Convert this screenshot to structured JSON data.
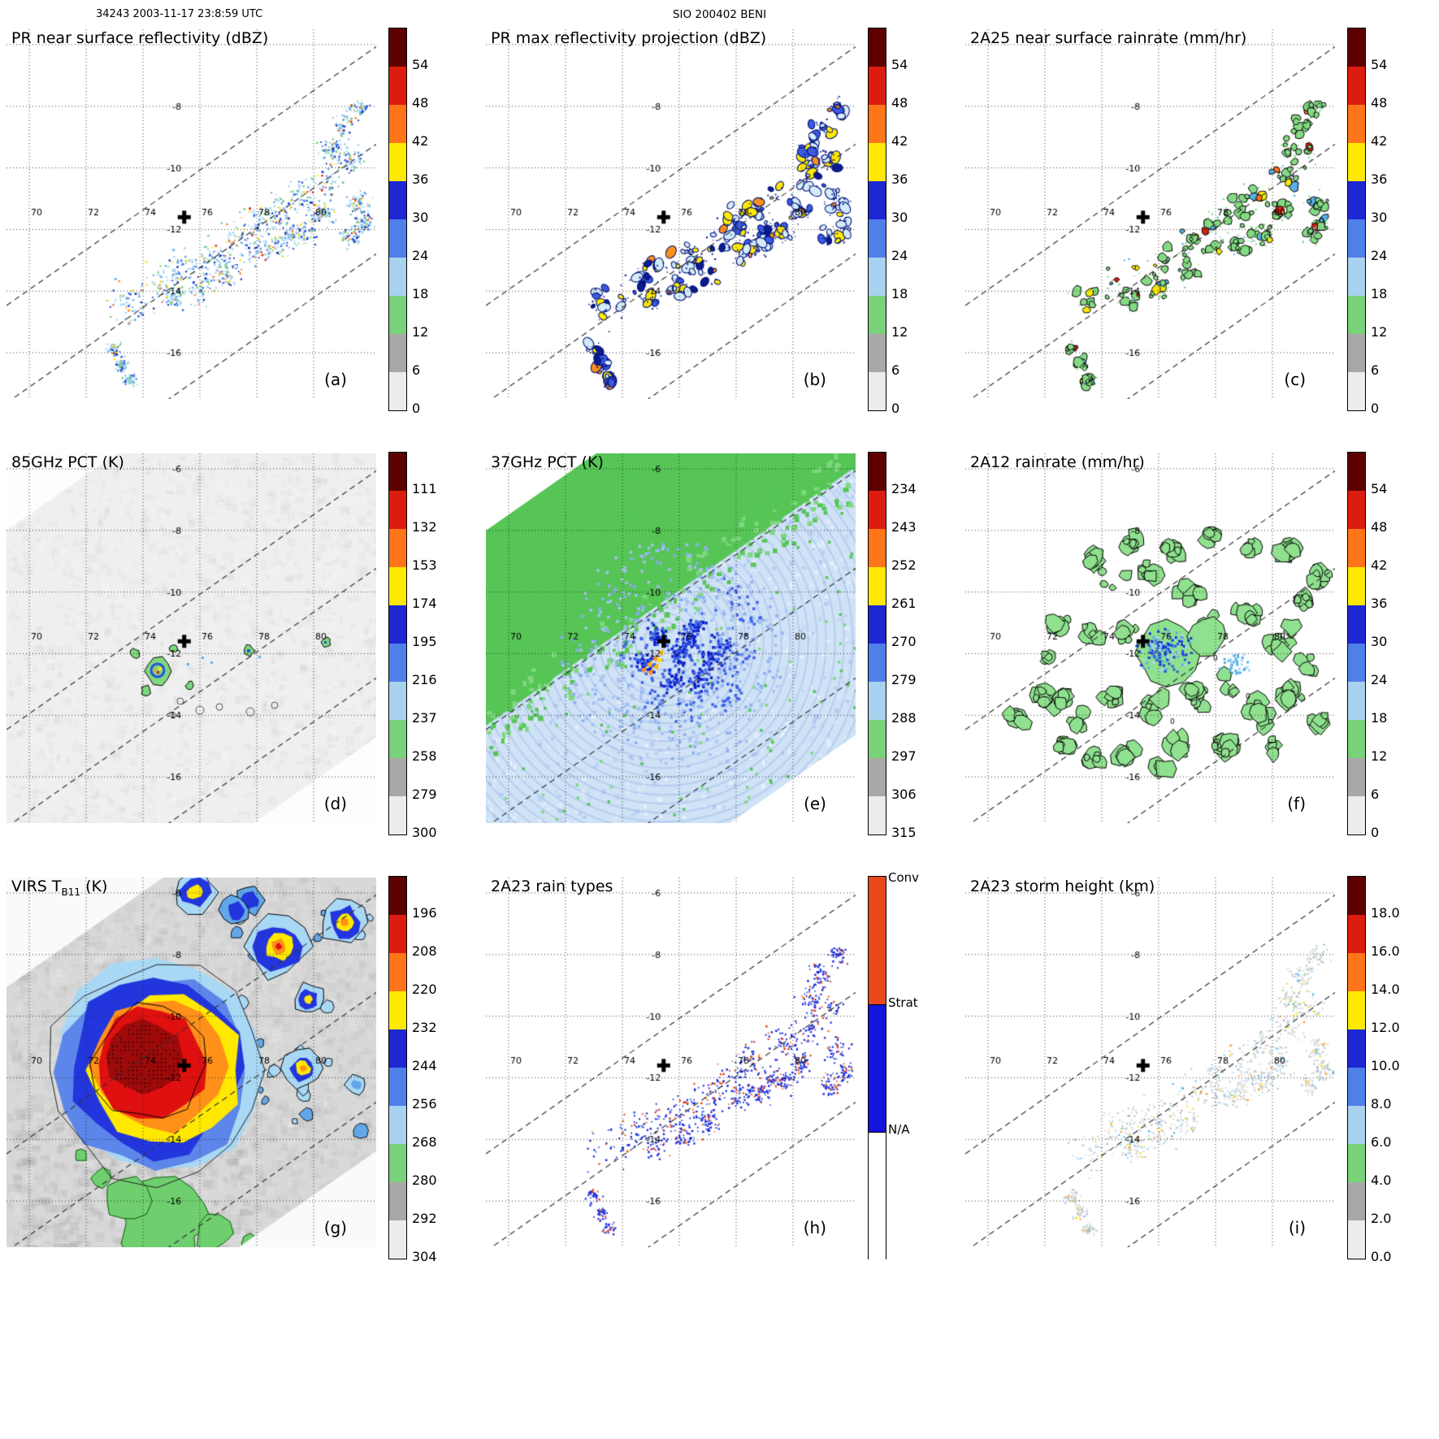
{
  "header": {
    "left": "34243 2003-11-17 23:8:59 UTC",
    "center": "SIO 200402 BENI"
  },
  "map_common": {
    "lon_ticks": [
      70,
      72,
      74,
      76,
      78,
      80
    ],
    "lat_ticks": [
      -6,
      -8,
      -10,
      -12,
      -14,
      -16
    ],
    "lon_range": [
      69.2,
      82.2
    ],
    "lat_range": [
      -17.5,
      -5.5
    ],
    "storm_center_marker": {
      "lon": 75.45,
      "lat": -11.6
    }
  },
  "colormap": [
    "#5e0000",
    "#dd1c10",
    "#ff7519",
    "#ffe900",
    "#1e28d2",
    "#4f7fe8",
    "#a8d2f0",
    "#79d279",
    "#a8a8a8",
    "#ececec"
  ],
  "rain_type_bar": {
    "labels": [
      "Conv",
      "Strat",
      "N/A"
    ],
    "colors": [
      "#e8481c",
      "#1414dc",
      "#ffffff"
    ],
    "fractions": [
      0.3333,
      0.3333,
      0.3334
    ]
  },
  "panels": [
    {
      "id": "a",
      "letter": "(a)",
      "title": "PR near surface reflectivity (dBZ)",
      "bar": "scale",
      "ticks": [
        "54",
        "48",
        "42",
        "36",
        "30",
        "24",
        "18",
        "12",
        "6",
        "0"
      ]
    },
    {
      "id": "b",
      "letter": "(b)",
      "title": "PR max reflectivity projection (dBZ)",
      "bar": "scale",
      "ticks": [
        "54",
        "48",
        "42",
        "36",
        "30",
        "24",
        "18",
        "12",
        "6",
        "0"
      ]
    },
    {
      "id": "c",
      "letter": "(c)",
      "title": "2A25 near surface rainrate (mm/hr)",
      "bar": "scale",
      "ticks": [
        "54",
        "48",
        "42",
        "36",
        "30",
        "24",
        "18",
        "12",
        "6",
        "0"
      ]
    },
    {
      "id": "d",
      "letter": "(d)",
      "title": "85GHz PCT (K)",
      "bar": "scale",
      "ticks": [
        "111",
        "132",
        "153",
        "174",
        "195",
        "216",
        "237",
        "258",
        "279",
        "300"
      ]
    },
    {
      "id": "e",
      "letter": "(e)",
      "title": "37GHz PCT (K)",
      "bar": "scale",
      "ticks": [
        "234",
        "243",
        "252",
        "261",
        "270",
        "279",
        "288",
        "297",
        "306",
        "315"
      ]
    },
    {
      "id": "f",
      "letter": "(f)",
      "title": "2A12 rainrate (mm/hr)",
      "bar": "scale",
      "ticks": [
        "54",
        "48",
        "42",
        "36",
        "30",
        "24",
        "18",
        "12",
        "6",
        "0"
      ]
    },
    {
      "id": "g",
      "letter": "(g)",
      "title_pre": "VIRS T",
      "title_sub": "B11",
      "title_post": " (K)",
      "bar": "scale",
      "ticks": [
        "196",
        "208",
        "220",
        "232",
        "244",
        "256",
        "268",
        "280",
        "292",
        "304"
      ]
    },
    {
      "id": "h",
      "letter": "(h)",
      "title": "2A23 rain types",
      "bar": "raintypes",
      "ticks": []
    },
    {
      "id": "i",
      "letter": "(i)",
      "title": "2A23 storm height (km)",
      "bar": "scale",
      "ticks": [
        "18.0",
        "16.0",
        "14.0",
        "12.0",
        "10.0",
        "8.0",
        "6.0",
        "4.0",
        "2.0",
        "0.0"
      ]
    }
  ],
  "chart_data": [
    {
      "id": "a",
      "type": "heatmap",
      "title": "PR near surface reflectivity (dBZ)",
      "units": "dBZ",
      "colorbar_ticks": [
        54,
        48,
        42,
        36,
        30,
        24,
        18,
        12,
        6,
        0
      ],
      "lon_range": [
        69.2,
        82.2
      ],
      "lat_range": [
        -17.5,
        -5.5
      ],
      "marker": {
        "lon": 75.45,
        "lat": -11.6
      },
      "pattern": "scattered 18-40 dBZ echoes in a NE-SW band inside the PR swath, arc of echoes near east edge, short echo streak to the southwest"
    },
    {
      "id": "b",
      "type": "heatmap",
      "title": "PR max reflectivity projection (dBZ)",
      "units": "dBZ",
      "colorbar_ticks": [
        54,
        48,
        42,
        36,
        30,
        24,
        18,
        12,
        6,
        0
      ],
      "lon_range": [
        69.2,
        82.2
      ],
      "lat_range": [
        -17.5,
        -5.5
      ],
      "marker": {
        "lon": 75.45,
        "lat": -11.6
      },
      "pattern": "same echo band as (a) shown as navy-outlined cells with cyan/yellow/orange interiors up to ~48 dBZ"
    },
    {
      "id": "c",
      "type": "heatmap",
      "title": "2A25 near surface rainrate (mm/hr)",
      "units": "mm/hr",
      "colorbar_ticks": [
        54,
        48,
        42,
        36,
        30,
        24,
        18,
        12,
        6,
        0
      ],
      "lon_range": [
        69.2,
        82.2
      ],
      "lat_range": [
        -17.5,
        -5.5
      ],
      "marker": {
        "lon": 75.45,
        "lat": -11.6
      },
      "pattern": "black-outlined light-green rain cells (mostly < 18 mm/hr) along the same band as (a)"
    },
    {
      "id": "d",
      "type": "heatmap",
      "title": "85GHz PCT (K)",
      "units": "K",
      "colorbar_ticks": [
        111,
        132,
        153,
        174,
        195,
        216,
        237,
        258,
        279,
        300
      ],
      "lon_range": [
        69.2,
        82.2
      ],
      "lat_range": [
        -17.5,
        -5.5
      ],
      "marker": {
        "lon": 75.45,
        "lat": -11.6
      },
      "pattern": "mostly warm (~280-300 K, near-white field); compact cold ice-scattering cluster (<195 K with small <132 K core) just west of the storm center plus a few small cold cells east of it"
    },
    {
      "id": "e",
      "type": "heatmap",
      "title": "37GHz PCT (K)",
      "units": "K",
      "colorbar_ticks": [
        234,
        243,
        252,
        261,
        270,
        279,
        288,
        297,
        306,
        315
      ],
      "lon_range": [
        69.2,
        82.2
      ],
      "lat_range": [
        -17.5,
        -5.5
      ],
      "marker": {
        "lon": 75.45,
        "lat": -11.6
      },
      "pattern": "pale-blue ocean field (~279 K), green warm region (~288 K) over the northeast, dark-blue cold cluster (~261-270 K) around the center with orange arrow marker at storm center"
    },
    {
      "id": "f",
      "type": "heatmap",
      "title": "2A12 rainrate (mm/hr)",
      "units": "mm/hr",
      "colorbar_ticks": [
        54,
        48,
        42,
        36,
        30,
        24,
        18,
        12,
        6,
        0
      ],
      "lon_range": [
        69.2,
        82.2
      ],
      "lat_range": [
        -17.5,
        -5.5
      ],
      "marker": {
        "lon": 75.45,
        "lat": -11.6
      },
      "pattern": "widespread black-outlined green rain patches (<12 mm/hr) in a spiral pattern across the wide TMI swath with light-blue cores near the center; small 0 contour labels"
    },
    {
      "id": "g",
      "type": "heatmap",
      "title": "VIRS T_B11 (K)",
      "units": "K",
      "colorbar_ticks": [
        196,
        208,
        220,
        232,
        244,
        256,
        268,
        280,
        292,
        304
      ],
      "lon_range": [
        69.2,
        82.2
      ],
      "lat_range": [
        -17.5,
        -5.5
      ],
      "marker": {
        "lon": 75.45,
        "lat": -11.6
      },
      "pattern": "large very cold cloud shield (<208 K, stippled dark-red core) centered near 74.5E 11.5S ringed by orange/yellow/blue; secondary cold cells to the northeast; warm gray ocean background with green land/warm patches to the south"
    },
    {
      "id": "h",
      "type": "heatmap",
      "title": "2A23 rain types",
      "categories": [
        "Conv",
        "Strat",
        "N/A"
      ],
      "lon_range": [
        69.2,
        82.2
      ],
      "lat_range": [
        -17.5,
        -5.5
      ],
      "marker": {
        "lon": 75.45,
        "lat": -11.6
      },
      "pattern": "rain-type classification along the PR echo band: mostly stratiform (blue) pixels with embedded convective (red-orange) pixels"
    },
    {
      "id": "i",
      "type": "heatmap",
      "title": "2A23 storm height (km)",
      "units": "km",
      "colorbar_ticks": [
        18.0,
        16.0,
        14.0,
        12.0,
        10.0,
        8.0,
        6.0,
        4.0,
        2.0,
        0.0
      ],
      "lon_range": [
        69.2,
        82.2
      ],
      "lat_range": [
        -17.5,
        -5.5
      ],
      "marker": {
        "lon": 75.45,
        "lat": -11.6
      },
      "pattern": "storm heights mostly 2-6 km (gray) along the echo band with scattered 8-12 km (blue/yellow) tops near the east arc"
    }
  ]
}
